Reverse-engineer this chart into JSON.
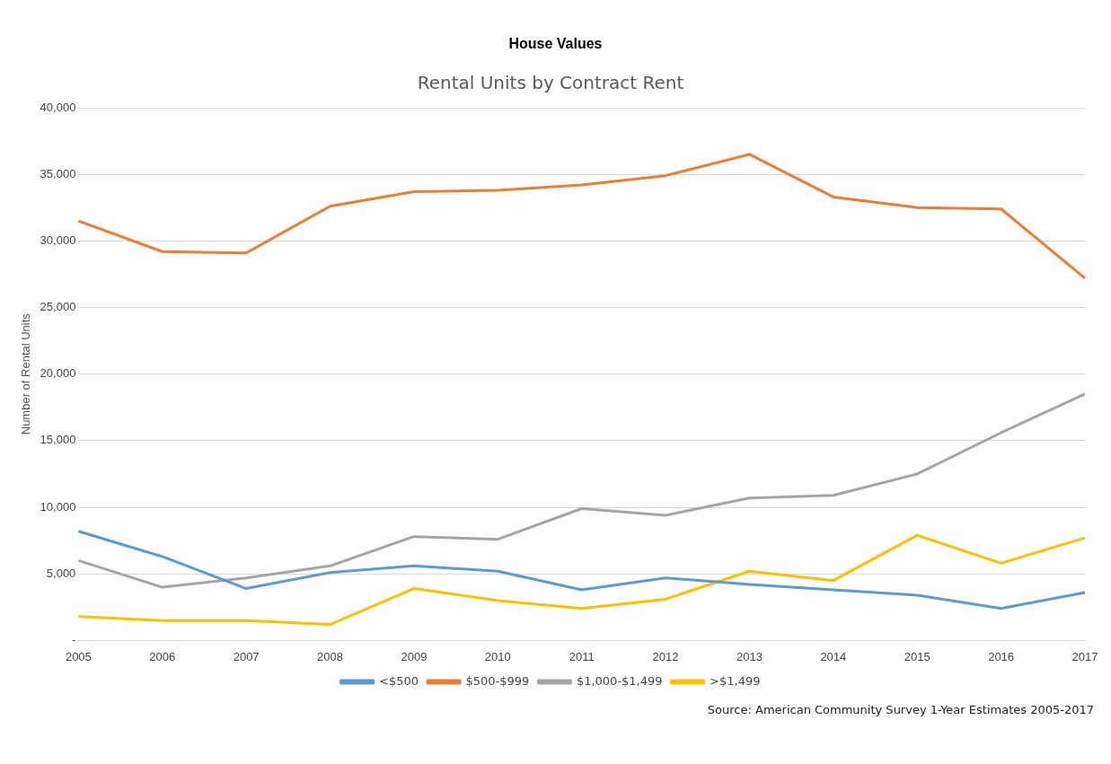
{
  "chart_data": {
    "type": "line",
    "title": "House Values",
    "subtitle": "Rental Units by Contract Rent",
    "ylabel": "Number of Rental Units",
    "categories": [
      "2005",
      "2006",
      "2007",
      "2008",
      "2009",
      "2010",
      "2011",
      "2012",
      "2013",
      "2014",
      "2015",
      "2016",
      "2017"
    ],
    "series": [
      {
        "name": "<$500",
        "color": "#5b9bd5",
        "values": [
          8200,
          6300,
          3900,
          5100,
          5600,
          5200,
          3800,
          4700,
          4200,
          3800,
          3400,
          2400,
          3600
        ]
      },
      {
        "name": "$500-$999",
        "color": "#ed7d31",
        "values": [
          31500,
          29200,
          29100,
          32600,
          33700,
          33800,
          34200,
          34900,
          36500,
          33300,
          32500,
          32400,
          27200
        ]
      },
      {
        "name": "$1,000-$1,499",
        "color": "#a5a5a5",
        "values": [
          6000,
          4000,
          4700,
          5600,
          7800,
          7600,
          9900,
          9400,
          10700,
          10900,
          12500,
          15600,
          18500
        ]
      },
      {
        "name": ">$1,499",
        "color": "#ffc000",
        "values": [
          1800,
          1500,
          1500,
          1200,
          3900,
          3000,
          2400,
          3100,
          5200,
          4500,
          7900,
          5800,
          7700
        ]
      }
    ],
    "ylim": [
      0,
      40000
    ],
    "yticks": [
      {
        "value": 0,
        "label": "-"
      },
      {
        "value": 5000,
        "label": "5,000"
      },
      {
        "value": 10000,
        "label": "10,000"
      },
      {
        "value": 15000,
        "label": "15,000"
      },
      {
        "value": 20000,
        "label": "20,000"
      },
      {
        "value": 25000,
        "label": "25,000"
      },
      {
        "value": 30000,
        "label": "30,000"
      },
      {
        "value": 35000,
        "label": "35,000"
      },
      {
        "value": 40000,
        "label": "40,000"
      }
    ],
    "grid": "y",
    "legend": "bottom",
    "marker": "none",
    "line_style": "solid",
    "annotations": [
      "Source: American Community Survey 1-Year Estimates 2005-2017"
    ]
  }
}
